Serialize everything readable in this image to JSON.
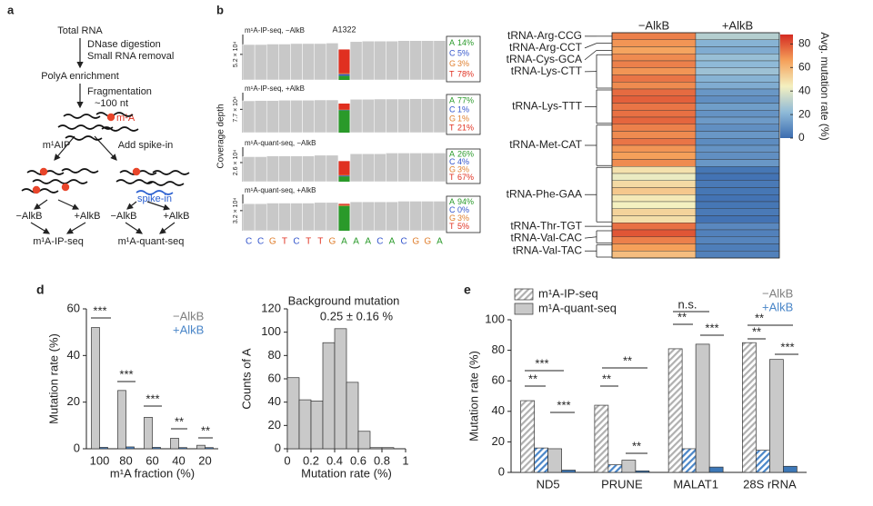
{
  "diagram": {
    "panel": "a",
    "total_rna": "Total RNA",
    "dnase": "DNase digestion",
    "small_rna": "Small RNA removal",
    "polya": "PolyA enrichment",
    "fragmentation": "Fragmentation",
    "size": "~100 nt",
    "m1a": "m¹A",
    "m1aip": "m¹AIP",
    "spike_in_step": "Add spike-in",
    "spike_in": "spike-in",
    "ip_minus": "−AlkB",
    "ip_plus": "+AlkB",
    "quant_minus": "−AlkB",
    "quant_plus": "+AlkB",
    "ip_seq": "m¹A-IP-seq",
    "quant_seq": "m¹A-quant-seq"
  },
  "chart_data": [
    {
      "type": "coverage",
      "panel": "b",
      "ylabel": "Coverage depth",
      "position_label": "A1322",
      "sequence": [
        "C",
        "C",
        "G",
        "T",
        "C",
        "T",
        "T",
        "G",
        "A",
        "A",
        "A",
        "C",
        "A",
        "C",
        "G",
        "G",
        "A"
      ],
      "bases": [
        "A",
        "C",
        "G",
        "T"
      ],
      "base_colors": [
        "#2a9a2a",
        "#3355cc",
        "#e08030",
        "#e03020"
      ],
      "color": "#c8c8c8",
      "tracks": [
        {
          "label": "m¹A-IP-seq, −AlkB",
          "ylim": [
            0,
            8.5
          ],
          "ytick": {
            "value": 5.2,
            "label": "5.2 × 10⁴"
          },
          "coverage": [
            7.2,
            7.2,
            7.3,
            7.3,
            7.4,
            7.4,
            7.4,
            7.5,
            6.2,
            7.8,
            7.9,
            7.9,
            7.9,
            8.0,
            8.0,
            8.0,
            8.0
          ],
          "values": [
            14,
            5,
            3,
            78
          ],
          "value_labels": [
            "14%",
            "5%",
            "3%",
            "78%"
          ]
        },
        {
          "label": "m¹A-IP-seq, +AlkB",
          "ylim": [
            0,
            12
          ],
          "ytick": {
            "value": 7.7,
            "label": "7.7 × 10⁴"
          },
          "coverage": [
            10.5,
            10.6,
            10.6,
            10.7,
            10.7,
            10.7,
            10.8,
            10.8,
            9.6,
            11.0,
            11.0,
            11.1,
            11.1,
            11.1,
            11.2,
            11.2,
            11.2
          ],
          "values": [
            77,
            1,
            1,
            21
          ],
          "value_labels": [
            "77%",
            "1%",
            "1%",
            "21%"
          ]
        },
        {
          "label": "m¹A-quant-seq, −AlkB",
          "ylim": [
            0,
            4.2
          ],
          "ytick": {
            "value": 2.6,
            "label": "2.6 × 10⁴"
          },
          "coverage": [
            3.4,
            3.4,
            3.5,
            3.5,
            3.5,
            3.5,
            3.6,
            3.6,
            2.8,
            3.8,
            3.8,
            3.8,
            3.9,
            3.9,
            3.9,
            3.9,
            3.9
          ],
          "values": [
            26,
            4,
            3,
            67
          ],
          "value_labels": [
            "26%",
            "4%",
            "3%",
            "67%"
          ]
        },
        {
          "label": "m¹A-quant-seq, +AlkB",
          "ylim": [
            0,
            5.2
          ],
          "ytick": {
            "value": 3.2,
            "label": "3.2 × 10⁴"
          },
          "coverage": [
            4.3,
            4.3,
            4.4,
            4.4,
            4.4,
            4.4,
            4.5,
            4.5,
            4.2,
            4.6,
            4.6,
            4.6,
            4.6,
            4.7,
            4.7,
            4.7,
            4.7
          ],
          "values": [
            94,
            0,
            3,
            5
          ],
          "value_labels": [
            "94%",
            "0%",
            "3%",
            "5%"
          ]
        }
      ]
    },
    {
      "type": "heatmap",
      "columns": [
        "−AlkB",
        "+AlkB"
      ],
      "colorbar_label": "Avg. mutation rate (%)",
      "clim": [
        0,
        88
      ],
      "cticks": [
        0,
        20,
        40,
        60,
        80
      ],
      "colormap": [
        "#3b6cb0",
        "#8fbad8",
        "#f4f0c0",
        "#f5a05a",
        "#d42b22"
      ],
      "groups": [
        {
          "label": "tRNA-Arg-CCG",
          "minus": [
            72
          ],
          "plus": [
            30
          ]
        },
        {
          "label": "tRNA-Arg-CCT",
          "minus": [
            68
          ],
          "plus": [
            20
          ]
        },
        {
          "label": "tRNA-Cys-GCA",
          "minus": [
            65
          ],
          "plus": [
            18
          ]
        },
        {
          "label": "tRNA-Lys-CTT",
          "minus": [
            70,
            72,
            68,
            74,
            70
          ],
          "plus": [
            24,
            22,
            25,
            20,
            18
          ]
        },
        {
          "label": "tRNA-Lys-TTT",
          "minus": [
            76,
            78,
            74,
            75,
            77
          ],
          "plus": [
            12,
            10,
            14,
            11,
            13
          ]
        },
        {
          "label": "tRNA-Met-CAT",
          "minus": [
            72,
            70,
            74,
            68,
            66,
            70
          ],
          "plus": [
            10,
            12,
            9,
            11,
            10,
            12
          ]
        },
        {
          "label": "tRNA-Phe-GAA",
          "minus": [
            48,
            42,
            50,
            55,
            46,
            44,
            52,
            49
          ],
          "plus": [
            3,
            2,
            4,
            3,
            2,
            3,
            4,
            2
          ]
        },
        {
          "label": "tRNA-Thr-TGT",
          "minus": [
            75
          ],
          "plus": [
            8
          ]
        },
        {
          "label": "tRNA-Val-CAC",
          "minus": [
            80,
            72
          ],
          "plus": [
            6,
            7
          ]
        },
        {
          "label": "tRNA-Val-TAC",
          "minus": [
            66,
            58
          ],
          "plus": [
            5,
            6
          ]
        }
      ]
    },
    {
      "type": "bar",
      "panel": "d",
      "categories": [
        "100",
        "80",
        "60",
        "40",
        "20"
      ],
      "xlabel": "m¹A fraction (%)",
      "ylabel": "Mutation rate (%)",
      "ylim": [
        0,
        60
      ],
      "yticks": [
        0,
        20,
        40,
        60
      ],
      "series": [
        {
          "name": "−AlkB",
          "color": "#c9c9c9",
          "text_color": "#808080",
          "values": [
            52,
            25,
            13.5,
            4.5,
            1.5
          ]
        },
        {
          "name": "+AlkB",
          "color": "#4a86c8",
          "text_color": "#4a86c8",
          "values": [
            0.6,
            0.8,
            0.6,
            0.5,
            0.5
          ]
        }
      ],
      "annotations": [
        "***",
        "***",
        "***",
        "**",
        "**"
      ]
    },
    {
      "type": "histogram",
      "title": "Background mutation",
      "subtitle": "0.25 ± 0.16 %",
      "bins": [
        0,
        0.1,
        0.2,
        0.3,
        0.4,
        0.5,
        0.6,
        0.7,
        0.8,
        0.9
      ],
      "counts": [
        61,
        42,
        41,
        91,
        103,
        57,
        15,
        1,
        1
      ],
      "color": "#c9c9c9",
      "xlabel": "Mutation rate (%)",
      "ylabel": "Counts of A",
      "xlim": [
        0,
        1
      ],
      "xticks": [
        0,
        0.2,
        0.4,
        0.6,
        0.8,
        1
      ],
      "ylim": [
        0,
        120
      ],
      "yticks": [
        0,
        20,
        40,
        60,
        80,
        100,
        120
      ]
    },
    {
      "type": "bar",
      "panel": "e",
      "categories": [
        "ND5",
        "PRUNE",
        "MALAT1",
        "28S rRNA"
      ],
      "ylabel": "Mutation rate (%)",
      "ylim": [
        0,
        100
      ],
      "yticks": [
        0,
        20,
        40,
        60,
        80,
        100
      ],
      "legend_patterns": [
        {
          "label": "m¹A-IP-seq",
          "hatch": true
        },
        {
          "label": "m¹A-quant-seq",
          "hatch": false
        }
      ],
      "legend_colors": [
        {
          "label": "−AlkB",
          "color": "#808080"
        },
        {
          "label": "+AlkB",
          "color": "#4a86c8"
        }
      ],
      "series": [
        {
          "hatch": true,
          "color": "#b0b0b0",
          "values": [
            47,
            44,
            81,
            85
          ]
        },
        {
          "hatch": true,
          "color": "#4a86c8",
          "values": [
            16,
            5,
            15.5,
            14.5
          ]
        },
        {
          "hatch": false,
          "color": "#c9c9c9",
          "values": [
            15.5,
            8,
            84,
            74
          ]
        },
        {
          "hatch": false,
          "color": "#3d78b8",
          "values": [
            1.5,
            1,
            3.5,
            4
          ]
        }
      ],
      "annotations": [
        "***",
        "**",
        "***",
        "**",
        "**",
        "**",
        "n.s.",
        "**",
        "***",
        "**",
        "**",
        "***"
      ]
    }
  ]
}
